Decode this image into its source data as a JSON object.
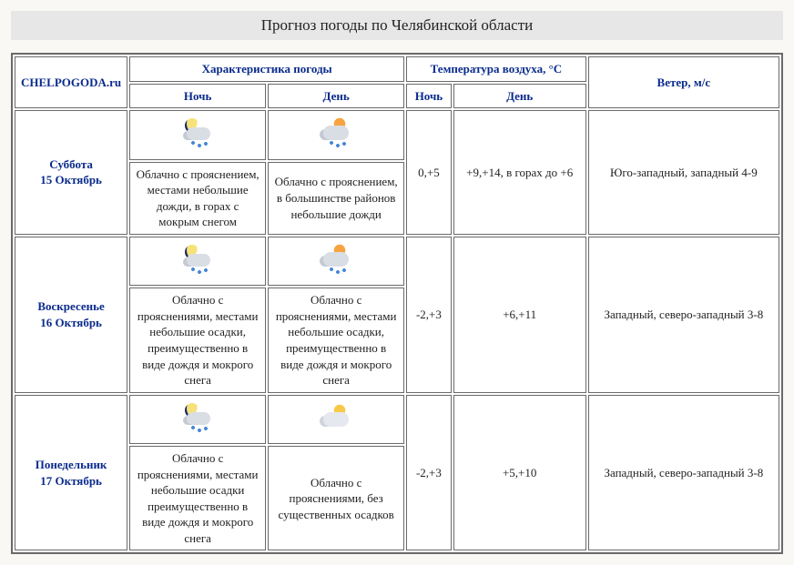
{
  "title": "Прогноз погоды по Челябинской области",
  "site_label": "CHELPOGODA.ru",
  "headers": {
    "characteristics": "Характеристика погоды",
    "temperature": "Температура воздуха, °C",
    "wind": "Ветер, м/с",
    "night": "Ночь",
    "day": "День"
  },
  "rows": [
    {
      "day_name": "Суббота",
      "day_date": "15 Октябрь",
      "night_icon": "night-rain",
      "day_icon": "day-rain",
      "night_desc": "Облачно с прояснением, местами небольшие дожди, в горах с мокрым снегом",
      "day_desc": "Облачно с прояснением, в большинстве районов небольшие дожди",
      "temp_night": "0,+5",
      "temp_day": "+9,+14, в горах до +6",
      "wind": "Юго-западный, западный 4-9"
    },
    {
      "day_name": "Воскресенье",
      "day_date": "16 Октябрь",
      "night_icon": "night-rain",
      "day_icon": "day-rain",
      "night_desc": "Облачно с прояснениями, местами небольшие осадки, преимущественно в виде дождя и мокрого снега",
      "day_desc": "Облачно с прояснениями, местами небольшие осадки, преимущественно в виде дождя и мокрого снега",
      "temp_night": "-2,+3",
      "temp_day": "+6,+11",
      "wind": "Западный, северо-западный 3-8"
    },
    {
      "day_name": "Понедельник",
      "day_date": "17 Октябрь",
      "night_icon": "night-rain",
      "day_icon": "cloudy-sun",
      "night_desc": "Облачно с прояснениями, местами небольшие осадки преимущественно в виде дождя и мокрого снега",
      "day_desc": "Облачно с прояснениями, без существенных осадков",
      "temp_night": "-2,+3",
      "temp_day": "+5,+10",
      "wind": "Западный, северо-западный 3-8"
    }
  ],
  "colors": {
    "header_text": "#0a2b8c",
    "border": "#6a6a6a",
    "title_bg": "#e7e7e7",
    "page_bg": "#f9f8f4"
  }
}
